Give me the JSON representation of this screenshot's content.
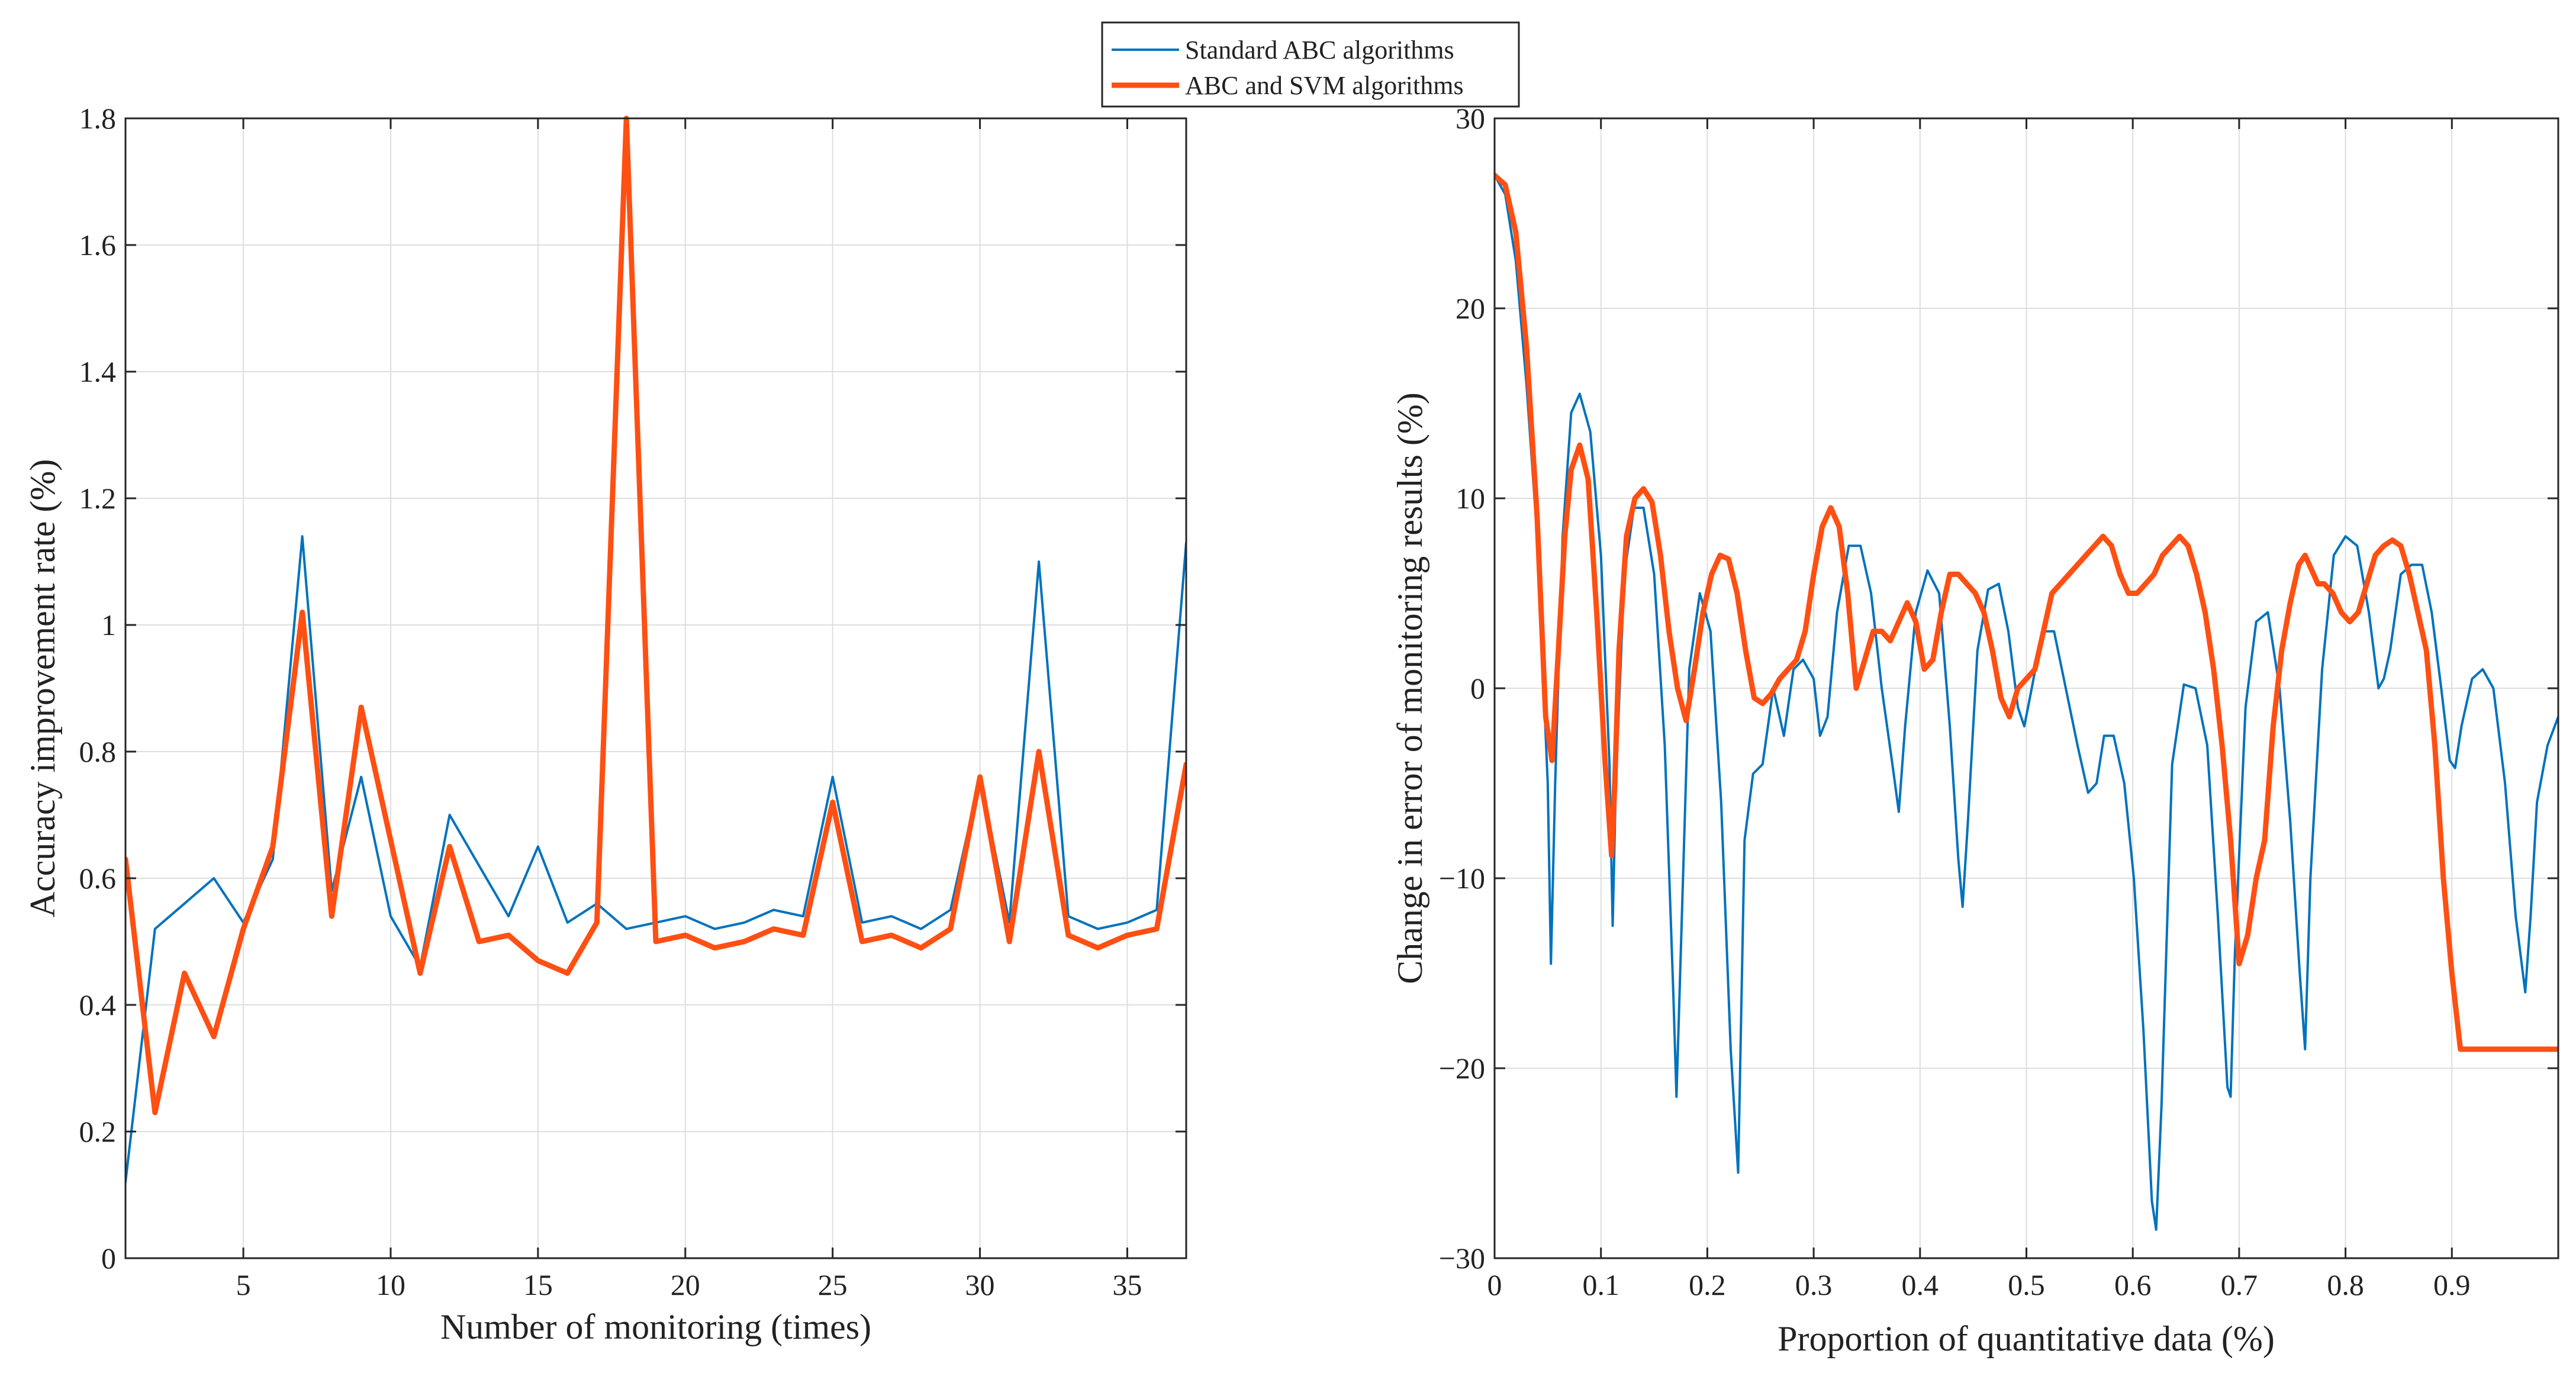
{
  "legend": {
    "entries": [
      "Standard ABC algorithms",
      "ABC and SVM algorithms"
    ]
  },
  "colors": {
    "series1": "#0072bd",
    "series2": "#ff4f12"
  },
  "chart_data": [
    {
      "type": "line",
      "xlabel": "Number of monitoring (times)",
      "ylabel": "Accuracy improvement rate (%)",
      "xlim": [
        1,
        37
      ],
      "ylim": [
        0,
        1.8
      ],
      "xticks": [
        5,
        10,
        15,
        20,
        25,
        30,
        35
      ],
      "yticks": [
        0,
        0.2,
        0.4,
        0.6,
        0.8,
        1,
        1.2,
        1.4,
        1.6,
        1.8
      ],
      "xtick_labels": [
        "5",
        "10",
        "15",
        "20",
        "25",
        "30",
        "35"
      ],
      "ytick_labels": [
        "0",
        "0.2",
        "0.4",
        "0.6",
        "0.8",
        "1",
        "1.2",
        "1.4",
        "1.6",
        "1.8"
      ],
      "grid": true,
      "legend_location": "top-center",
      "x": [
        1,
        2,
        3,
        4,
        5,
        6,
        7,
        8,
        9,
        10,
        11,
        12,
        13,
        14,
        15,
        16,
        17,
        18,
        19,
        20,
        21,
        22,
        23,
        24,
        25,
        26,
        27,
        28,
        29,
        30,
        31,
        32,
        33,
        34,
        35,
        36,
        37
      ],
      "series": [
        {
          "name": "Standard ABC algorithms",
          "values": [
            0.12,
            0.52,
            0.56,
            0.6,
            0.53,
            0.63,
            1.14,
            0.58,
            0.76,
            0.54,
            0.46,
            0.7,
            0.62,
            0.54,
            0.65,
            0.53,
            0.56,
            0.52,
            0.53,
            0.54,
            0.52,
            0.53,
            0.55,
            0.54,
            0.76,
            0.53,
            0.54,
            0.52,
            0.55,
            0.76,
            0.53,
            1.1,
            0.54,
            0.52,
            0.53,
            0.55,
            1.13
          ]
        },
        {
          "name": "ABC and SVM algorithms",
          "values": [
            0.63,
            0.23,
            0.45,
            0.35,
            0.52,
            0.65,
            1.02,
            0.54,
            0.87,
            0.66,
            0.45,
            0.65,
            0.5,
            0.51,
            0.47,
            0.45,
            0.53,
            1.8,
            0.5,
            0.51,
            0.49,
            0.5,
            0.52,
            0.51,
            0.72,
            0.5,
            0.51,
            0.49,
            0.52,
            0.76,
            0.5,
            0.8,
            0.51,
            0.49,
            0.51,
            0.52,
            0.78
          ]
        }
      ]
    },
    {
      "type": "line",
      "xlabel": "Proportion of quantitative data (%)",
      "ylabel": "Change in error of monitoring results (%)",
      "xlim": [
        0,
        1
      ],
      "ylim": [
        -30,
        30
      ],
      "xticks": [
        0,
        0.1,
        0.2,
        0.3,
        0.4,
        0.5,
        0.6,
        0.7,
        0.8,
        0.9
      ],
      "yticks": [
        -30,
        -20,
        -10,
        0,
        10,
        20,
        30
      ],
      "xtick_labels": [
        "0",
        "0.1",
        "0.2",
        "0.3",
        "0.4",
        "0.5",
        "0.6",
        "0.7",
        "0.8",
        "0.9"
      ],
      "ytick_labels": [
        "−30",
        "−20",
        "−10",
        "0",
        "10",
        "20",
        "30"
      ],
      "grid": true,
      "series": [
        {
          "name": "Standard ABC algorithms",
          "x": [
            0,
            0.01,
            0.02,
            0.03,
            0.04,
            0.05,
            0.053,
            0.057,
            0.064,
            0.072,
            0.08,
            0.09,
            0.1,
            0.108,
            0.111,
            0.114,
            0.122,
            0.131,
            0.14,
            0.15,
            0.16,
            0.168,
            0.171,
            0.175,
            0.183,
            0.193,
            0.203,
            0.213,
            0.222,
            0.229,
            0.235,
            0.243,
            0.252,
            0.262,
            0.272,
            0.281,
            0.29,
            0.3,
            0.306,
            0.313,
            0.322,
            0.333,
            0.344,
            0.354,
            0.364,
            0.374,
            0.38,
            0.386,
            0.396,
            0.407,
            0.418,
            0.428,
            0.436,
            0.44,
            0.445,
            0.454,
            0.464,
            0.474,
            0.483,
            0.492,
            0.498,
            0.505,
            0.515,
            0.526,
            0.537,
            0.548,
            0.558,
            0.566,
            0.573,
            0.582,
            0.592,
            0.601,
            0.61,
            0.618,
            0.622,
            0.627,
            0.637,
            0.648,
            0.659,
            0.67,
            0.68,
            0.689,
            0.692,
            0.696,
            0.706,
            0.716,
            0.727,
            0.738,
            0.748,
            0.757,
            0.762,
            0.767,
            0.778,
            0.789,
            0.8,
            0.811,
            0.822,
            0.831,
            0.836,
            0.842,
            0.852,
            0.862,
            0.872,
            0.881,
            0.89,
            0.898,
            0.903,
            0.909,
            0.919,
            0.929,
            0.939,
            0.95,
            0.96,
            0.969,
            0.974,
            0.98,
            0.99,
            1.0
          ],
          "values": [
            27,
            26,
            22.5,
            16,
            8,
            -5,
            -14.5,
            -5,
            8,
            14.5,
            15.5,
            13.5,
            7,
            -4,
            -12.5,
            -5,
            6,
            9.5,
            9.5,
            6,
            -3,
            -16,
            -21.5,
            -14,
            1,
            5,
            3,
            -6,
            -19,
            -25.5,
            -8,
            -4.5,
            -4,
            0,
            -2.5,
            1,
            1.5,
            0.5,
            -2.5,
            -1.5,
            4,
            7.5,
            7.5,
            5,
            0,
            -4,
            -6.5,
            -2,
            4,
            6.2,
            5,
            -2,
            -9,
            -11.5,
            -7,
            2,
            5.2,
            5.5,
            3,
            -1,
            -2,
            0,
            3,
            3,
            0,
            -3,
            -5.5,
            -5,
            -2.5,
            -2.5,
            -5,
            -10,
            -18,
            -27,
            -28.5,
            -22,
            -4,
            0.2,
            0,
            -3,
            -12,
            -21,
            -21.5,
            -14,
            -1,
            3.5,
            4,
            0,
            -7,
            -15,
            -19,
            -10,
            1,
            7,
            8,
            7.5,
            4,
            0,
            0.5,
            2,
            6,
            6.5,
            6.5,
            4,
            0,
            -3.8,
            -4.2,
            -2,
            0.5,
            1,
            0,
            -5,
            -12,
            -16,
            -12,
            -6,
            -3,
            -1.5
          ]
        },
        {
          "name": "ABC and SVM algorithms",
          "x": [
            0,
            0.01,
            0.02,
            0.03,
            0.04,
            0.048,
            0.054,
            0.06,
            0.066,
            0.072,
            0.08,
            0.088,
            0.096,
            0.104,
            0.11,
            0.113,
            0.117,
            0.124,
            0.132,
            0.14,
            0.148,
            0.156,
            0.164,
            0.172,
            0.18,
            0.188,
            0.196,
            0.204,
            0.212,
            0.22,
            0.228,
            0.236,
            0.244,
            0.252,
            0.26,
            0.268,
            0.276,
            0.284,
            0.292,
            0.3,
            0.308,
            0.316,
            0.324,
            0.332,
            0.34,
            0.348,
            0.356,
            0.364,
            0.372,
            0.38,
            0.388,
            0.396,
            0.404,
            0.412,
            0.42,
            0.428,
            0.436,
            0.444,
            0.452,
            0.46,
            0.468,
            0.476,
            0.484,
            0.492,
            0.5,
            0.508,
            0.516,
            0.524,
            0.532,
            0.54,
            0.548,
            0.556,
            0.564,
            0.572,
            0.58,
            0.588,
            0.596,
            0.604,
            0.612,
            0.62,
            0.628,
            0.636,
            0.644,
            0.652,
            0.66,
            0.668,
            0.676,
            0.684,
            0.692,
            0.7,
            0.708,
            0.716,
            0.724,
            0.732,
            0.74,
            0.748,
            0.756,
            0.762,
            0.766,
            0.77,
            0.774,
            0.78,
            0.788,
            0.796,
            0.804,
            0.812,
            0.82,
            0.828,
            0.836,
            0.844,
            0.852,
            0.86,
            0.868,
            0.876,
            0.884,
            0.892,
            0.9,
            0.908,
            0.916,
            0.924,
            0.932,
            0.94,
            0.948,
            0.956,
            0.964,
            0.972,
            0.98,
            0.988,
            0.994,
            1.0
          ],
          "values": [
            27,
            26.5,
            24,
            18,
            9,
            -1.5,
            -3.8,
            2,
            8,
            11.5,
            12.8,
            11,
            4,
            -4,
            -8.8,
            -5,
            2,
            8,
            10,
            10.5,
            9.8,
            7,
            3,
            0,
            -1.7,
            1,
            4,
            6,
            7,
            6.8,
            5,
            2,
            -0.5,
            -0.8,
            -0.3,
            0.5,
            1,
            1.5,
            3,
            6,
            8.5,
            9.5,
            8.5,
            5,
            0,
            1.5,
            3,
            3,
            2.5,
            3.5,
            4.5,
            3.5,
            1,
            1.5,
            4,
            6,
            6,
            5.5,
            5,
            4,
            2,
            -0.5,
            -1.5,
            0,
            0.5,
            1,
            3,
            5,
            5.5,
            6,
            6.5,
            7,
            7.5,
            8,
            7.5,
            6,
            5,
            5,
            5.5,
            6,
            7,
            7.5,
            8,
            7.5,
            6,
            4,
            1,
            -3,
            -8,
            -14.5,
            -13,
            -10,
            -8,
            -2,
            2,
            4.5,
            6.5,
            7,
            6.5,
            6,
            5.5,
            5.5,
            5,
            4,
            3.5,
            4,
            5.5,
            7,
            7.5,
            7.8,
            7.5,
            6,
            4,
            2,
            -3,
            -10,
            -15,
            -19,
            -19,
            -19,
            -19,
            -19,
            -19,
            -19,
            -19,
            -19,
            -19,
            -19,
            -19,
            -19
          ]
        }
      ]
    }
  ]
}
